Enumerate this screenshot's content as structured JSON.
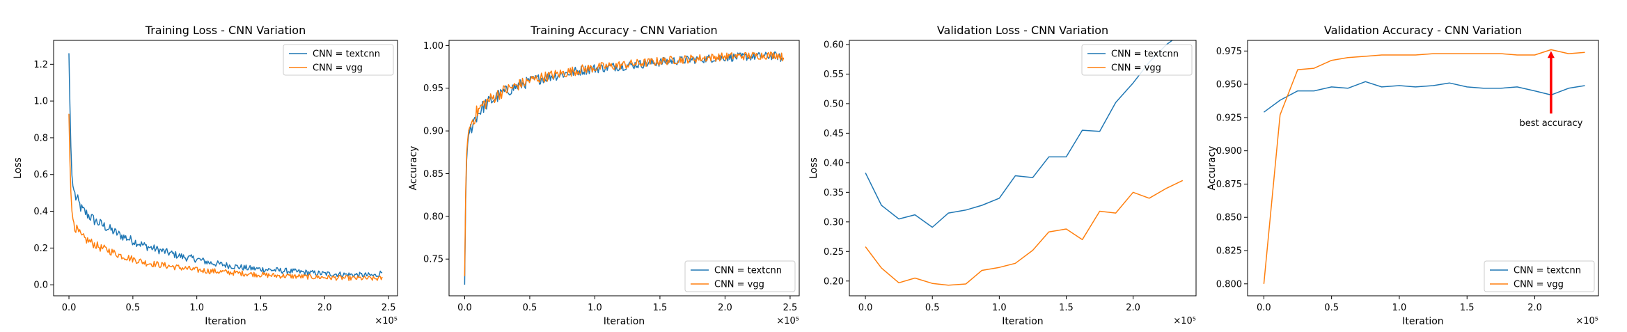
{
  "figure": {
    "panels": 4,
    "colors": {
      "textcnn": "#1f77b4",
      "vgg": "#ff7f0e",
      "annotation": "#ff0000",
      "axes": "#000000"
    }
  },
  "chart_data": [
    {
      "type": "line",
      "title": "Training Loss - CNN Variation",
      "xlabel": "Iteration",
      "ylabel": "Loss",
      "x_multiplier_label": "×10⁵",
      "xlim": [
        -0.12,
        2.57
      ],
      "ylim": [
        -0.06,
        1.33
      ],
      "xticks": [
        0.0,
        0.5,
        1.0,
        1.5,
        2.0,
        2.5
      ],
      "xtick_labels": [
        "0.0",
        "0.5",
        "1.0",
        "1.5",
        "2.0",
        "2.5"
      ],
      "yticks": [
        0.0,
        0.2,
        0.4,
        0.6,
        0.8,
        1.0,
        1.2
      ],
      "ytick_labels": [
        "0.0",
        "0.2",
        "0.4",
        "0.6",
        "0.8",
        "1.0",
        "1.2"
      ],
      "legend": {
        "position": "upper right",
        "entries": [
          "CNN = textcnn",
          "CNN = vgg"
        ]
      },
      "series": [
        {
          "name": "CNN = textcnn",
          "noisy": true,
          "x": [
            0.0,
            0.01,
            0.02,
            0.03,
            0.05,
            0.08,
            0.1,
            0.15,
            0.2,
            0.25,
            0.3,
            0.4,
            0.5,
            0.6,
            0.7,
            0.8,
            0.9,
            1.0,
            1.1,
            1.2,
            1.3,
            1.4,
            1.5,
            1.6,
            1.7,
            1.8,
            1.9,
            2.0,
            2.1,
            2.2,
            2.3,
            2.4,
            2.45
          ],
          "y": [
            1.26,
            0.9,
            0.62,
            0.54,
            0.48,
            0.44,
            0.41,
            0.38,
            0.35,
            0.33,
            0.31,
            0.27,
            0.24,
            0.21,
            0.19,
            0.17,
            0.15,
            0.14,
            0.12,
            0.11,
            0.1,
            0.09,
            0.085,
            0.08,
            0.075,
            0.07,
            0.065,
            0.06,
            0.058,
            0.055,
            0.053,
            0.05,
            0.07
          ]
        },
        {
          "name": "CNN = vgg",
          "noisy": true,
          "x": [
            0.0,
            0.01,
            0.02,
            0.03,
            0.05,
            0.08,
            0.1,
            0.15,
            0.2,
            0.25,
            0.3,
            0.4,
            0.5,
            0.6,
            0.7,
            0.8,
            0.9,
            1.0,
            1.1,
            1.2,
            1.3,
            1.4,
            1.5,
            1.6,
            1.7,
            1.8,
            1.9,
            2.0,
            2.1,
            2.2,
            2.3,
            2.4,
            2.45
          ],
          "y": [
            0.93,
            0.6,
            0.42,
            0.36,
            0.31,
            0.28,
            0.26,
            0.24,
            0.22,
            0.2,
            0.19,
            0.16,
            0.14,
            0.12,
            0.11,
            0.1,
            0.09,
            0.08,
            0.075,
            0.07,
            0.065,
            0.06,
            0.055,
            0.05,
            0.048,
            0.045,
            0.043,
            0.04,
            0.038,
            0.036,
            0.035,
            0.033,
            0.035
          ]
        }
      ]
    },
    {
      "type": "line",
      "title": "Training Accuracy - CNN Variation",
      "xlabel": "Iteration",
      "ylabel": "Accuracy",
      "x_multiplier_label": "×10⁵",
      "xlim": [
        -0.12,
        2.57
      ],
      "ylim": [
        0.707,
        1.006
      ],
      "xticks": [
        0.0,
        0.5,
        1.0,
        1.5,
        2.0,
        2.5
      ],
      "xtick_labels": [
        "0.0",
        "0.5",
        "1.0",
        "1.5",
        "2.0",
        "2.5"
      ],
      "yticks": [
        0.75,
        0.8,
        0.85,
        0.9,
        0.95,
        1.0
      ],
      "ytick_labels": [
        "0.75",
        "0.80",
        "0.85",
        "0.90",
        "0.95",
        "1.00"
      ],
      "legend": {
        "position": "lower right",
        "entries": [
          "CNN = textcnn",
          "CNN = vgg"
        ]
      },
      "series": [
        {
          "name": "CNN = textcnn",
          "noisy": true,
          "x": [
            0.0,
            0.01,
            0.02,
            0.03,
            0.05,
            0.08,
            0.1,
            0.15,
            0.2,
            0.25,
            0.3,
            0.4,
            0.5,
            0.6,
            0.7,
            0.8,
            0.9,
            1.0,
            1.2,
            1.4,
            1.6,
            1.8,
            2.0,
            2.2,
            2.4,
            2.45
          ],
          "y": [
            0.72,
            0.85,
            0.88,
            0.895,
            0.905,
            0.915,
            0.92,
            0.93,
            0.935,
            0.94,
            0.945,
            0.952,
            0.958,
            0.962,
            0.965,
            0.968,
            0.971,
            0.973,
            0.976,
            0.979,
            0.982,
            0.984,
            0.986,
            0.987,
            0.988,
            0.983
          ]
        },
        {
          "name": "CNN = vgg",
          "noisy": true,
          "x": [
            0.0,
            0.01,
            0.02,
            0.03,
            0.05,
            0.08,
            0.1,
            0.15,
            0.2,
            0.25,
            0.3,
            0.4,
            0.5,
            0.6,
            0.7,
            0.8,
            0.9,
            1.0,
            1.2,
            1.4,
            1.6,
            1.8,
            2.0,
            2.2,
            2.4,
            2.45
          ],
          "y": [
            0.73,
            0.86,
            0.885,
            0.9,
            0.91,
            0.918,
            0.923,
            0.932,
            0.937,
            0.942,
            0.947,
            0.953,
            0.959,
            0.963,
            0.966,
            0.969,
            0.972,
            0.974,
            0.977,
            0.98,
            0.983,
            0.985,
            0.987,
            0.988,
            0.989,
            0.986
          ]
        }
      ]
    },
    {
      "type": "line",
      "title": "Validation Loss - CNN Variation",
      "xlabel": "Iteration",
      "ylabel": "Loss",
      "x_multiplier_label": "×10⁵",
      "xlim": [
        -0.12,
        2.47
      ],
      "ylim": [
        0.175,
        0.607
      ],
      "xticks": [
        0.0,
        0.5,
        1.0,
        1.5,
        2.0
      ],
      "xtick_labels": [
        "0.0",
        "0.5",
        "1.0",
        "1.5",
        "2.0"
      ],
      "yticks": [
        0.2,
        0.25,
        0.3,
        0.35,
        0.4,
        0.45,
        0.5,
        0.55,
        0.6
      ],
      "ytick_labels": [
        "0.20",
        "0.25",
        "0.30",
        "0.35",
        "0.40",
        "0.45",
        "0.50",
        "0.55",
        "0.60"
      ],
      "legend": {
        "position": "upper right",
        "entries": [
          "CNN = textcnn",
          "CNN = vgg"
        ]
      },
      "series": [
        {
          "name": "CNN = textcnn",
          "x": [
            0.0,
            0.12,
            0.25,
            0.37,
            0.5,
            0.62,
            0.75,
            0.87,
            1.0,
            1.12,
            1.25,
            1.37,
            1.5,
            1.62,
            1.75,
            1.87,
            2.0,
            2.12,
            2.25,
            2.37
          ],
          "y": [
            0.383,
            0.328,
            0.305,
            0.312,
            0.291,
            0.315,
            0.32,
            0.328,
            0.34,
            0.378,
            0.375,
            0.41,
            0.41,
            0.455,
            0.453,
            0.502,
            0.535,
            0.57,
            0.6,
            0.62
          ]
        },
        {
          "name": "CNN = vgg",
          "x": [
            0.0,
            0.12,
            0.25,
            0.37,
            0.5,
            0.62,
            0.75,
            0.87,
            1.0,
            1.12,
            1.25,
            1.37,
            1.5,
            1.62,
            1.75,
            1.87,
            2.0,
            2.12,
            2.25,
            2.37
          ],
          "y": [
            0.258,
            0.222,
            0.197,
            0.205,
            0.196,
            0.193,
            0.195,
            0.218,
            0.223,
            0.23,
            0.252,
            0.283,
            0.288,
            0.27,
            0.318,
            0.315,
            0.35,
            0.34,
            0.357,
            0.37
          ]
        }
      ]
    },
    {
      "type": "line",
      "title": "Validation Accuracy - CNN Variation",
      "xlabel": "Iteration",
      "ylabel": "Accuracy",
      "x_multiplier_label": "×10⁵",
      "xlim": [
        -0.12,
        2.47
      ],
      "ylim": [
        0.791,
        0.983
      ],
      "xticks": [
        0.0,
        0.5,
        1.0,
        1.5,
        2.0
      ],
      "xtick_labels": [
        "0.0",
        "0.5",
        "1.0",
        "1.5",
        "2.0"
      ],
      "yticks": [
        0.8,
        0.825,
        0.85,
        0.875,
        0.9,
        0.925,
        0.95,
        0.975
      ],
      "ytick_labels": [
        "0.800",
        "0.825",
        "0.850",
        "0.875",
        "0.900",
        "0.925",
        "0.950",
        "0.975"
      ],
      "legend": {
        "position": "lower right",
        "entries": [
          "CNN = textcnn",
          "CNN = vgg"
        ]
      },
      "annotation": {
        "text": "best accuracy",
        "x": 2.12,
        "y_tip": 0.975,
        "y_tail": 0.928
      },
      "series": [
        {
          "name": "CNN = textcnn",
          "x": [
            0.0,
            0.12,
            0.25,
            0.37,
            0.5,
            0.62,
            0.75,
            0.87,
            1.0,
            1.12,
            1.25,
            1.37,
            1.5,
            1.62,
            1.75,
            1.87,
            2.0,
            2.12,
            2.25,
            2.37
          ],
          "y": [
            0.929,
            0.938,
            0.945,
            0.945,
            0.948,
            0.947,
            0.952,
            0.948,
            0.949,
            0.948,
            0.949,
            0.951,
            0.948,
            0.947,
            0.947,
            0.948,
            0.945,
            0.942,
            0.947,
            0.949
          ]
        },
        {
          "name": "CNN = vgg",
          "x": [
            0.0,
            0.12,
            0.25,
            0.37,
            0.5,
            0.62,
            0.75,
            0.87,
            1.0,
            1.12,
            1.25,
            1.37,
            1.5,
            1.62,
            1.75,
            1.87,
            2.0,
            2.12,
            2.25,
            2.37
          ],
          "y": [
            0.8,
            0.927,
            0.961,
            0.962,
            0.968,
            0.97,
            0.971,
            0.972,
            0.972,
            0.972,
            0.973,
            0.973,
            0.973,
            0.973,
            0.973,
            0.972,
            0.972,
            0.976,
            0.973,
            0.974
          ]
        }
      ]
    }
  ]
}
